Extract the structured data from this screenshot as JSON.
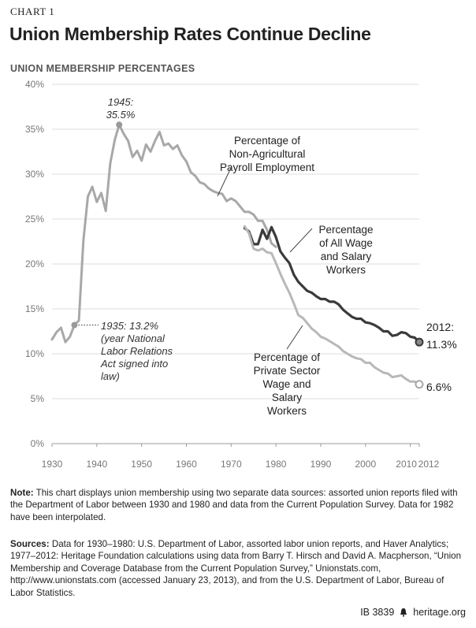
{
  "header": {
    "chart_label": "CHART 1",
    "title": "Union Membership Rates Continue Decline",
    "subtitle": "UNION MEMBERSHIP PERCENTAGES"
  },
  "chart_data": {
    "type": "line",
    "title": "Union Membership Rates Continue Decline",
    "ylabel": "UNION MEMBERSHIP PERCENTAGES",
    "xlabel": "",
    "xlim": [
      1930,
      2012
    ],
    "ylim": [
      0,
      40
    ],
    "x_ticks": [
      "1930",
      "1940",
      "1950",
      "1960",
      "1970",
      "1980",
      "1990",
      "2000",
      "2010",
      "2012"
    ],
    "y_ticks": [
      "0%",
      "5%",
      "10%",
      "15%",
      "20%",
      "25%",
      "30%",
      "35%",
      "40%"
    ],
    "series": [
      {
        "name": "Percentage of Non-Agricultural Payroll Employment",
        "color": "#a8a8a8",
        "points": [
          [
            1930,
            11.6
          ],
          [
            1931,
            12.4
          ],
          [
            1932,
            12.9
          ],
          [
            1933,
            11.3
          ],
          [
            1934,
            11.9
          ],
          [
            1935,
            13.2
          ],
          [
            1936,
            13.7
          ],
          [
            1937,
            22.6
          ],
          [
            1938,
            27.5
          ],
          [
            1939,
            28.6
          ],
          [
            1940,
            26.9
          ],
          [
            1941,
            27.9
          ],
          [
            1942,
            25.9
          ],
          [
            1943,
            31.2
          ],
          [
            1944,
            33.8
          ],
          [
            1945,
            35.5
          ],
          [
            1946,
            34.5
          ],
          [
            1947,
            33.7
          ],
          [
            1948,
            31.9
          ],
          [
            1949,
            32.6
          ],
          [
            1950,
            31.5
          ],
          [
            1951,
            33.3
          ],
          [
            1952,
            32.5
          ],
          [
            1953,
            33.7
          ],
          [
            1954,
            34.7
          ],
          [
            1955,
            33.2
          ],
          [
            1956,
            33.4
          ],
          [
            1957,
            32.8
          ],
          [
            1958,
            33.2
          ],
          [
            1959,
            32.1
          ],
          [
            1960,
            31.4
          ],
          [
            1961,
            30.2
          ],
          [
            1962,
            29.8
          ],
          [
            1963,
            29.1
          ],
          [
            1964,
            28.9
          ],
          [
            1965,
            28.4
          ],
          [
            1966,
            28.1
          ],
          [
            1967,
            27.9
          ],
          [
            1968,
            27.8
          ],
          [
            1969,
            27.0
          ],
          [
            1970,
            27.3
          ],
          [
            1971,
            27.0
          ],
          [
            1972,
            26.4
          ],
          [
            1973,
            25.8
          ],
          [
            1974,
            25.8
          ],
          [
            1975,
            25.5
          ],
          [
            1976,
            24.8
          ],
          [
            1977,
            24.8
          ],
          [
            1978,
            23.8
          ],
          [
            1979,
            22.3
          ],
          [
            1980,
            21.9
          ]
        ]
      },
      {
        "name": "Percentage of All Wage and Salary Workers",
        "color": "#3a3a3a",
        "points": [
          [
            1973,
            24.0
          ],
          [
            1974,
            23.6
          ],
          [
            1975,
            22.2
          ],
          [
            1976,
            22.2
          ],
          [
            1977,
            23.8
          ],
          [
            1978,
            22.8
          ],
          [
            1979,
            24.1
          ],
          [
            1980,
            23.0
          ],
          [
            1981,
            21.4
          ],
          [
            1982,
            20.7
          ],
          [
            1983,
            20.1
          ],
          [
            1984,
            18.8
          ],
          [
            1985,
            18.0
          ],
          [
            1986,
            17.5
          ],
          [
            1987,
            17.0
          ],
          [
            1988,
            16.8
          ],
          [
            1989,
            16.4
          ],
          [
            1990,
            16.1
          ],
          [
            1991,
            16.1
          ],
          [
            1992,
            15.8
          ],
          [
            1993,
            15.8
          ],
          [
            1994,
            15.5
          ],
          [
            1995,
            14.9
          ],
          [
            1996,
            14.5
          ],
          [
            1997,
            14.1
          ],
          [
            1998,
            13.9
          ],
          [
            1999,
            13.9
          ],
          [
            2000,
            13.5
          ],
          [
            2001,
            13.4
          ],
          [
            2002,
            13.2
          ],
          [
            2003,
            12.9
          ],
          [
            2004,
            12.5
          ],
          [
            2005,
            12.5
          ],
          [
            2006,
            12.0
          ],
          [
            2007,
            12.1
          ],
          [
            2008,
            12.4
          ],
          [
            2009,
            12.3
          ],
          [
            2010,
            11.9
          ],
          [
            2011,
            11.8
          ],
          [
            2012,
            11.3
          ]
        ]
      },
      {
        "name": "Percentage of Private Sector Wage and Salary Workers",
        "color": "#b8b8b8",
        "points": [
          [
            1973,
            24.2
          ],
          [
            1974,
            23.4
          ],
          [
            1975,
            21.7
          ],
          [
            1976,
            21.5
          ],
          [
            1977,
            21.7
          ],
          [
            1978,
            21.3
          ],
          [
            1979,
            21.2
          ],
          [
            1980,
            20.1
          ],
          [
            1981,
            18.9
          ],
          [
            1982,
            17.8
          ],
          [
            1983,
            16.8
          ],
          [
            1984,
            15.6
          ],
          [
            1985,
            14.3
          ],
          [
            1986,
            14.0
          ],
          [
            1987,
            13.4
          ],
          [
            1988,
            12.8
          ],
          [
            1989,
            12.4
          ],
          [
            1990,
            11.9
          ],
          [
            1991,
            11.7
          ],
          [
            1992,
            11.4
          ],
          [
            1993,
            11.1
          ],
          [
            1994,
            10.8
          ],
          [
            1995,
            10.3
          ],
          [
            1996,
            10.0
          ],
          [
            1997,
            9.7
          ],
          [
            1998,
            9.5
          ],
          [
            1999,
            9.4
          ],
          [
            2000,
            9.0
          ],
          [
            2001,
            9.0
          ],
          [
            2002,
            8.5
          ],
          [
            2003,
            8.2
          ],
          [
            2004,
            7.9
          ],
          [
            2005,
            7.8
          ],
          [
            2006,
            7.4
          ],
          [
            2007,
            7.5
          ],
          [
            2008,
            7.6
          ],
          [
            2009,
            7.2
          ],
          [
            2010,
            6.9
          ],
          [
            2011,
            6.9
          ],
          [
            2012,
            6.6
          ]
        ]
      }
    ],
    "annotations": {
      "peak_year": "1945:",
      "peak_value": "35.5%",
      "start_lines": [
        "1935: 13.2%",
        "(year National",
        "Labor Relations",
        "Act signed into",
        "law)"
      ],
      "nonag_lines": [
        "Percentage of",
        "Non-Agricultural",
        "Payroll Employment"
      ],
      "all_lines": [
        "Percentage",
        "of All Wage",
        "and Salary",
        "Workers"
      ],
      "private_lines": [
        "Percentage of",
        "Private Sector",
        "Wage and",
        "Salary",
        "Workers"
      ],
      "end_year": "2012:",
      "end_all": "11.3%",
      "end_private": "6.6%"
    }
  },
  "notes": {
    "label": "Note:",
    "text": "This chart displays union membership using two separate data sources: assorted union reports filed with the Department of Labor between 1930 and 1980 and data from the Current Population Survey. Data for 1982 have been interpolated."
  },
  "sources": {
    "label": "Sources:",
    "text": "Data for 1930–1980: U.S. Department of Labor, assorted labor union reports, and Haver Analytics; 1977–2012: Heritage Foundation calculations using data from Barry T. Hirsch and David A. Macpherson, “Union Membership and Coverage Database from the Current Population Survey,” Unionstats.com, http://www.unionstats.com (accessed January 23, 2013), and from the U.S. Department of Labor, Bureau of Labor Statistics."
  },
  "footer": {
    "id": "IB 3839",
    "site": "heritage.org"
  }
}
